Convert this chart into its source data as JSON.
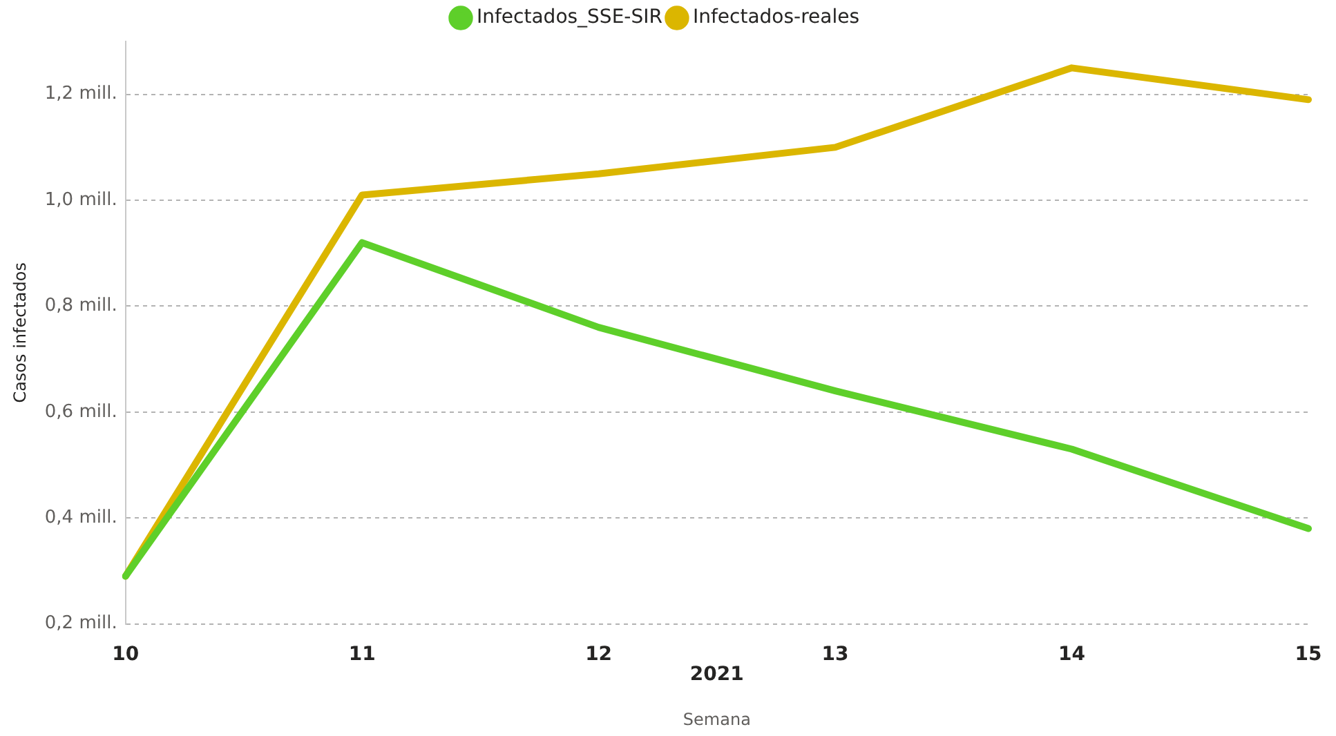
{
  "chart_data": {
    "type": "line",
    "xlabel": "Semana",
    "ylabel": "Casos infectados",
    "categories": [
      "10",
      "11",
      "12",
      "13",
      "14",
      "15"
    ],
    "series": [
      {
        "name": "Infectados_SSE-SIR",
        "color": "#5ecf2a",
        "values": [
          0.29,
          0.92,
          0.76,
          0.64,
          0.53,
          0.38
        ]
      },
      {
        "name": "Infectados-reales",
        "color": "#dbb600",
        "values": [
          0.29,
          1.01,
          1.05,
          1.1,
          1.25,
          1.19
        ]
      }
    ],
    "ylim": [
      0.2,
      1.3
    ],
    "yticks": [
      {
        "value": 0.2,
        "label": "0,2 mill."
      },
      {
        "value": 0.4,
        "label": "0,4 mill."
      },
      {
        "value": 0.6,
        "label": "0,6 mill."
      },
      {
        "value": 0.8,
        "label": "0,8 mill."
      },
      {
        "value": 1.0,
        "label": "1,0 mill."
      },
      {
        "value": 1.2,
        "label": "1,2 mill."
      }
    ],
    "annotations": [
      "2021"
    ],
    "grid": "y",
    "legend": "top",
    "marker": "none",
    "line_style": "solid"
  }
}
